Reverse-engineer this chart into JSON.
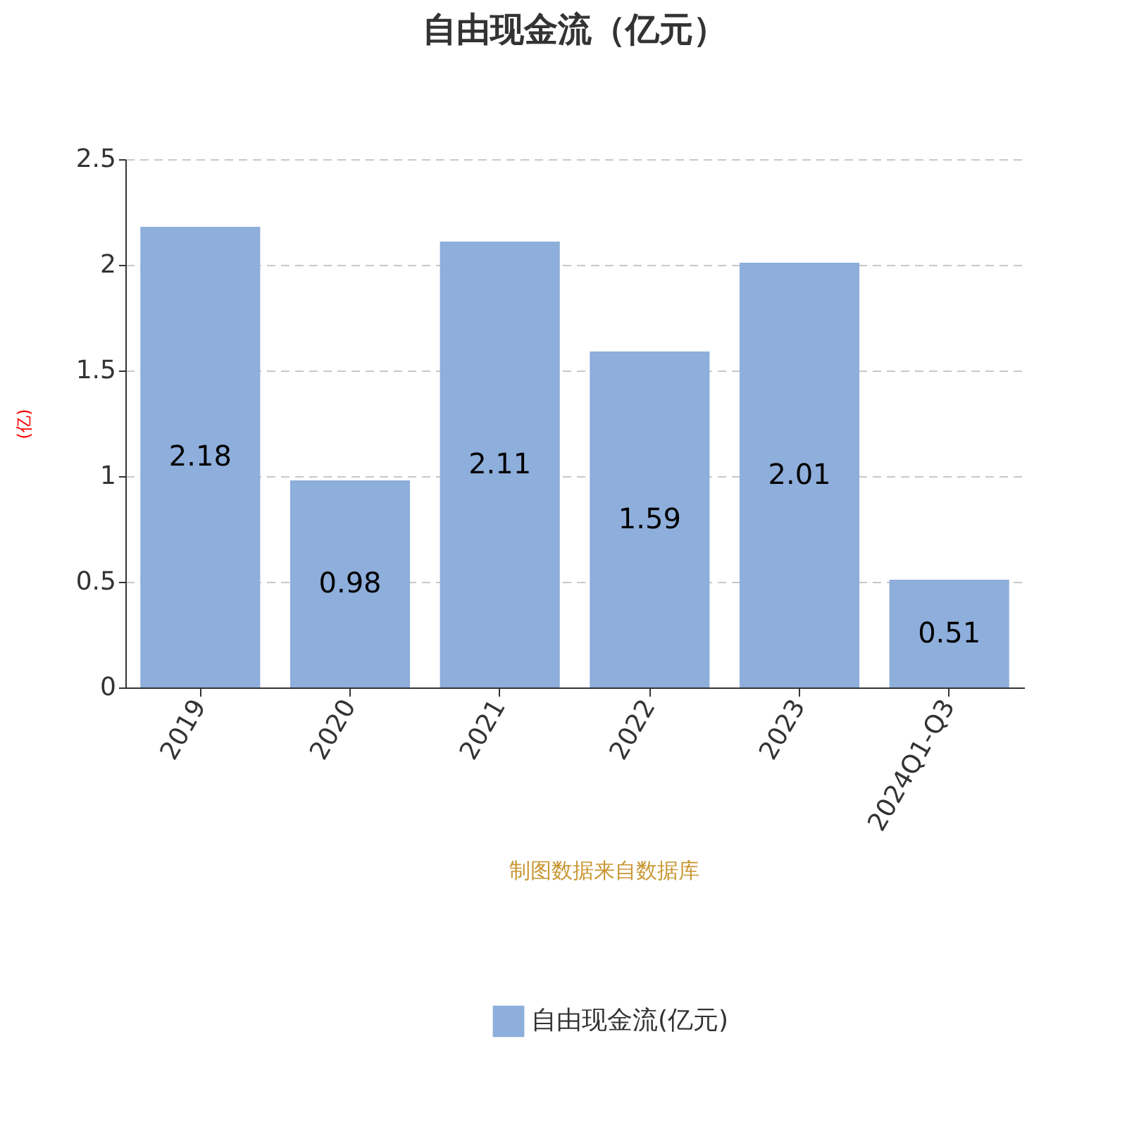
{
  "chart_data": {
    "type": "bar",
    "title": "自由现金流（亿元）",
    "ylabel": "(亿)",
    "categories": [
      "2019",
      "2020",
      "2021",
      "2022",
      "2023",
      "2024Q1-Q3"
    ],
    "series": [
      {
        "name": "自由现金流(亿元)",
        "color": "#8eaedb",
        "values": [
          2.18,
          0.98,
          2.11,
          1.59,
          2.01,
          0.51
        ]
      }
    ],
    "ylim": [
      0,
      2.5
    ],
    "yticks": [
      0,
      0.5,
      1,
      1.5,
      2,
      2.5
    ],
    "grid": "y",
    "legend": "bottom",
    "data_labels": true,
    "annotations": [
      "制图数据来自数据库"
    ]
  }
}
